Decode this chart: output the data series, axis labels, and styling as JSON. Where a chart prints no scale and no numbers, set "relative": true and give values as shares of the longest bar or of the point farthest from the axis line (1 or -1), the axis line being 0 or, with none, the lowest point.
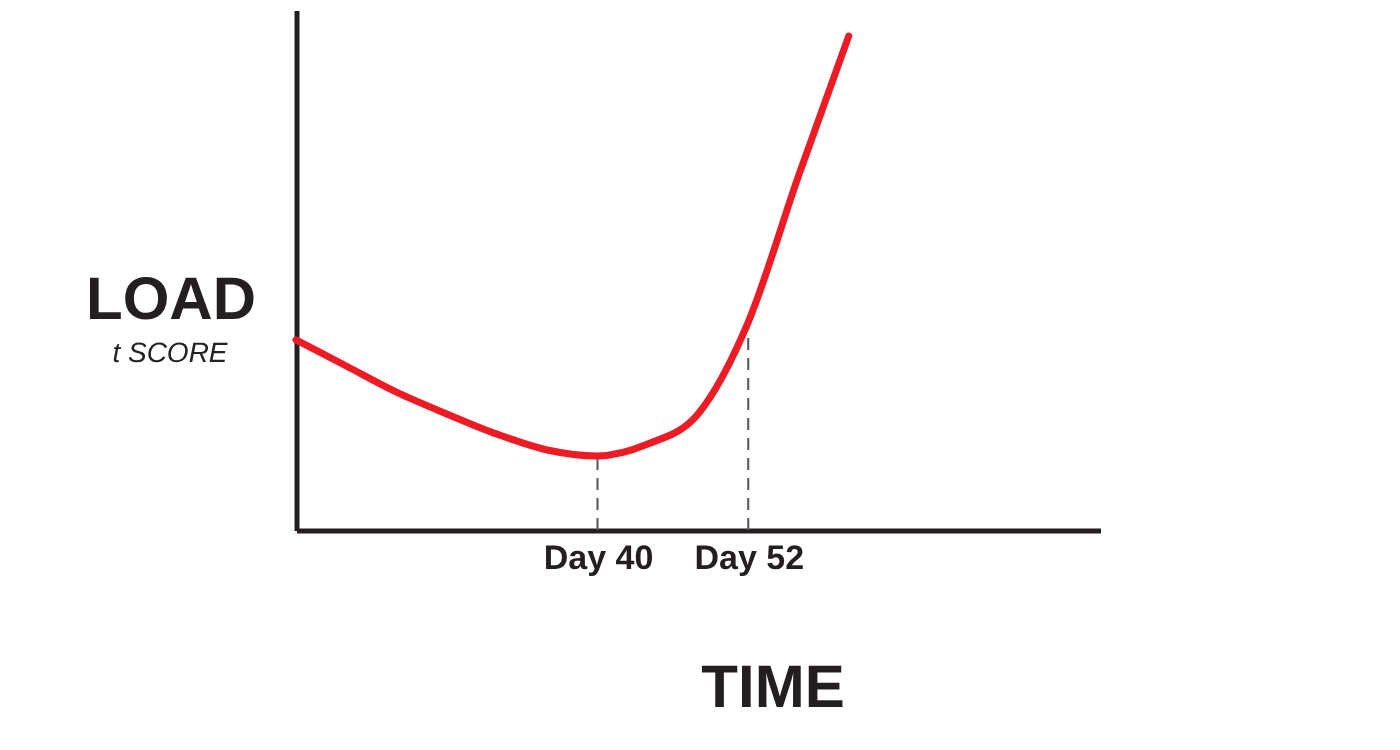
{
  "chart_data": {
    "type": "line",
    "relative": true,
    "ylabel": "LOAD",
    "xlabel": "TIME",
    "annotations": [
      "t SCORE"
    ],
    "categories": [
      null,
      null,
      null,
      null,
      null,
      null,
      "Day 40",
      null,
      null,
      "Day 52",
      null,
      null,
      null,
      null,
      null,
      null,
      null
    ],
    "series": [
      {
        "color": "#ed1c24",
        "values": [
          0.385,
          0.332,
          0.279,
          0.235,
          0.194,
          0.162,
          0.15,
          0.174,
          0.235,
          0.421,
          0.717,
          1.0,
          null,
          null,
          null,
          null,
          null
        ]
      }
    ],
    "ref_lines": [
      {
        "axis": "x",
        "value": "Day 40",
        "color": "#555555",
        "line_style": "dashed"
      },
      {
        "axis": "x",
        "value": "Day 52",
        "color": "#555555",
        "line_style": "dashed"
      }
    ],
    "grid": false,
    "marker": "none",
    "line_style": "solid"
  }
}
